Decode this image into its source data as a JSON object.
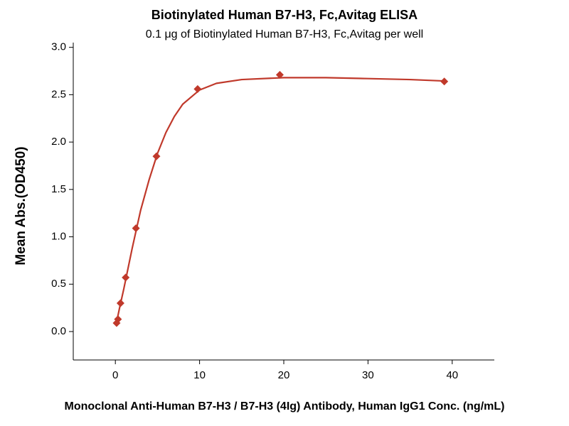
{
  "chart_data": {
    "type": "scatter",
    "title": "Biotinylated Human B7-H3, Fc,Avitag ELISA",
    "subtitle": "0.1 μg of Biotinylated Human B7-H3, Fc,Avitag per well",
    "x_label": "Monoclonal Anti-Human B7-H3 / B7-H3 (4Ig) Antibody, Human IgG1 Conc. (ng/mL)",
    "y_label": "Mean Abs.(OD450)",
    "x": [
      0.15,
      0.31,
      0.61,
      1.22,
      2.44,
      4.88,
      9.77,
      19.53,
      39.06
    ],
    "values": [
      0.09,
      0.13,
      0.3,
      0.57,
      1.09,
      1.85,
      2.56,
      2.71,
      2.64
    ],
    "color": "#c0392b",
    "fit": {
      "x": [
        0.1,
        0.5,
        1,
        2,
        3,
        4,
        5,
        6,
        7,
        8,
        10,
        12,
        15,
        20,
        25,
        30,
        35,
        39.06
      ],
      "values": [
        0.08,
        0.25,
        0.45,
        0.88,
        1.28,
        1.6,
        1.88,
        2.1,
        2.27,
        2.4,
        2.55,
        2.62,
        2.66,
        2.68,
        2.68,
        2.67,
        2.66,
        2.645
      ],
      "color": "#c0392b"
    },
    "xlim": [
      -5,
      45
    ],
    "ylim": [
      -0.3,
      3.05
    ],
    "xticks": [
      0,
      10,
      20,
      30,
      40
    ],
    "yticks": [
      {
        "value": 0,
        "label": "0.0"
      },
      0.5,
      {
        "value": 1,
        "label": "1.0"
      },
      1.5,
      {
        "value": 2,
        "label": "2.0"
      },
      2.5,
      {
        "value": 3,
        "label": "3.0"
      }
    ],
    "grid": false
  }
}
